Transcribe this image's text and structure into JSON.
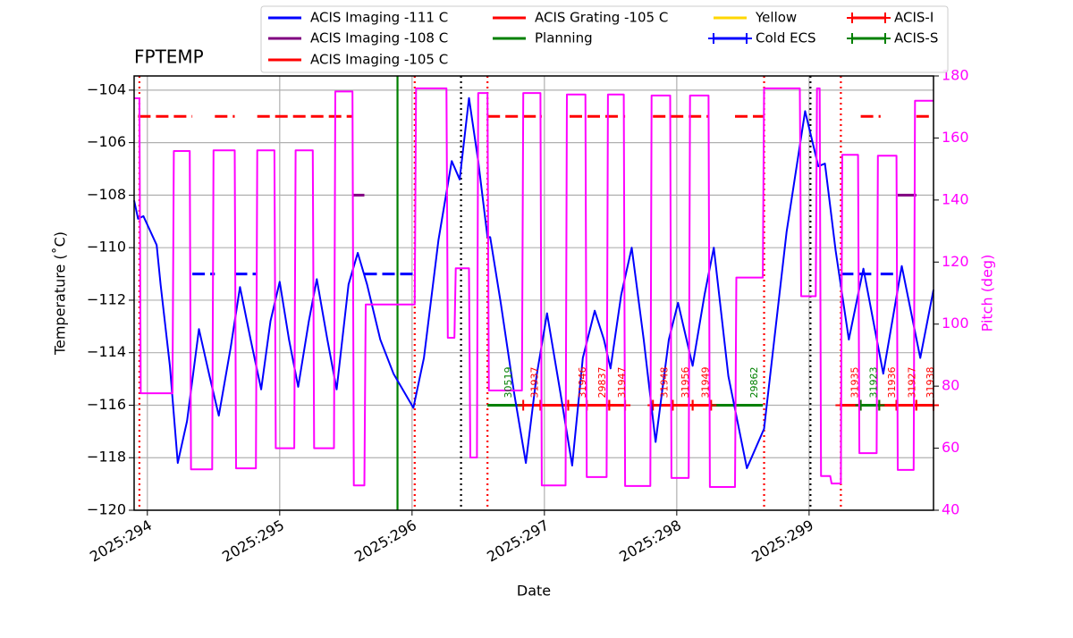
{
  "chart_data": {
    "type": "line",
    "title": "FPTEMP",
    "x_label": "Date",
    "y_label": "Temperature (˚C)",
    "y2_label": "Pitch (deg)",
    "y2_color": "#ff00ff",
    "grid": true,
    "legend": "upper center",
    "xlim": [
      293.9,
      299.94
    ],
    "xticks": [
      {
        "value": 294,
        "label": "2025:294"
      },
      {
        "value": 295,
        "label": "2025:295"
      },
      {
        "value": 296,
        "label": "2025:296"
      },
      {
        "value": 297,
        "label": "2025:297"
      },
      {
        "value": 298,
        "label": "2025:298"
      },
      {
        "value": 299,
        "label": "2025:299"
      }
    ],
    "ylim": [
      -120,
      -103.46
    ],
    "yticks": [
      {
        "value": -120,
        "label": "−120"
      },
      {
        "value": -118,
        "label": "−118"
      },
      {
        "value": -116,
        "label": "−116"
      },
      {
        "value": -114,
        "label": "−114"
      },
      {
        "value": -112,
        "label": "−112"
      },
      {
        "value": -110,
        "label": "−110"
      },
      {
        "value": -108,
        "label": "−108"
      },
      {
        "value": -106,
        "label": "−106"
      },
      {
        "value": -104,
        "label": "−104"
      }
    ],
    "y2lim": [
      40,
      180
    ],
    "y2ticks": [
      40,
      60,
      80,
      100,
      120,
      140,
      160,
      180
    ],
    "series": [
      {
        "name": "ACIS Imaging -111 C",
        "color": "#0000ff",
        "linestyle": "dashed",
        "x": [
          294.34,
          294.51,
          null,
          294.66,
          294.82,
          null,
          295.64,
          296.01,
          null,
          299.24,
          299.47,
          null,
          299.54,
          299.66
        ],
        "values": [
          -111,
          -111,
          null,
          -111,
          -111,
          null,
          -111,
          -111,
          null,
          -111,
          -111,
          null,
          -111,
          -111
        ]
      },
      {
        "name": "ACIS Imaging -108 C",
        "color": "#800080",
        "linestyle": "solid",
        "x": [
          295.55,
          295.64,
          null,
          299.67,
          299.81
        ],
        "values": [
          -108,
          -108,
          null,
          -108,
          -108
        ]
      },
      {
        "name": "ACIS Imaging -105 C",
        "color": "#ff0000",
        "linestyle": "dashed",
        "x": [
          293.93,
          294.34,
          null,
          294.51,
          294.66,
          null,
          294.83,
          295.55
        ],
        "values": [
          -105,
          -105,
          null,
          -105,
          -105,
          null,
          -105,
          -105
        ]
      },
      {
        "name": "ACIS Grating -105 C",
        "color": "#ff0000",
        "linestyle": "dashed",
        "x": [
          296.57,
          296.98,
          null,
          297.19,
          297.61,
          null,
          297.82,
          298.24,
          null,
          298.44,
          298.66,
          null,
          299.39,
          299.54,
          null,
          299.81,
          299.94
        ],
        "values": [
          -105,
          -105,
          null,
          -105,
          -105,
          null,
          -105,
          -105,
          null,
          -105,
          -105,
          null,
          -105,
          -105,
          null,
          -105,
          -105
        ]
      },
      {
        "name": "Planning",
        "color": "#008000",
        "linestyle": "solid",
        "x": [
          296.57,
          296.84,
          null,
          298.26,
          298.65
        ],
        "values": [
          -116,
          -116,
          null,
          -116,
          -116
        ]
      },
      {
        "name": "Yellow",
        "color": "#ffd700",
        "linestyle": "solid",
        "x": [],
        "values": []
      },
      {
        "name": "Cold ECS",
        "color": "#0000ff",
        "linestyle": "solid",
        "marker": "+",
        "x": [],
        "values": []
      },
      {
        "name": "ACIS-I",
        "color": "#ff0000",
        "linestyle": "solid",
        "marker": "+",
        "x": [
          296.84,
          296.97,
          null,
          296.97,
          297.18,
          null,
          297.18,
          297.32,
          null,
          297.32,
          297.49,
          null,
          297.49,
          297.61,
          null,
          297.82,
          297.97,
          null,
          297.97,
          298.12,
          null,
          298.12,
          298.26,
          null,
          299.24,
          299.39,
          null,
          299.53,
          299.66,
          null,
          299.66,
          299.81,
          null,
          299.81,
          299.94
        ],
        "values": [
          -116,
          -116,
          null,
          -116,
          -116,
          null,
          -116,
          -116,
          null,
          -116,
          -116,
          null,
          -116,
          -116,
          null,
          -116,
          -116,
          null,
          -116,
          -116,
          null,
          -116,
          -116,
          null,
          -116,
          -116,
          null,
          -116,
          -116,
          null,
          -116,
          -116,
          null,
          -116,
          -116
        ]
      },
      {
        "name": "ACIS-S",
        "color": "#008000",
        "linestyle": "solid",
        "marker": "+",
        "x": [
          299.39,
          299.53
        ],
        "values": [
          -116,
          -116
        ]
      },
      {
        "color": "#0000ff",
        "linestyle": "solid",
        "x": [
          293.9,
          293.93,
          293.97,
          294.07,
          294.1,
          294.17,
          294.23,
          294.3,
          294.39,
          294.47,
          294.54,
          294.63,
          294.7,
          294.78,
          294.86,
          294.93,
          295.0,
          295.07,
          295.14,
          295.22,
          295.28,
          295.36,
          295.43,
          295.52,
          295.59,
          295.66,
          295.76,
          295.86,
          296.01,
          296.09,
          296.2,
          296.3,
          296.36,
          296.43,
          296.5,
          296.57,
          296.59,
          296.67,
          296.77,
          296.86,
          296.94,
          297.02,
          297.12,
          297.21,
          297.29,
          297.38,
          297.45,
          297.5,
          297.58,
          297.66,
          297.75,
          297.84,
          297.94,
          298.01,
          298.12,
          298.21,
          298.28,
          298.39,
          298.53,
          298.66,
          298.83,
          298.97,
          299.07,
          299.12,
          299.2,
          299.3,
          299.41,
          299.56,
          299.7,
          299.84,
          299.94
        ],
        "values": [
          -108.2,
          -108.9,
          -108.8,
          -109.9,
          -111.4,
          -114.5,
          -118.2,
          -116.6,
          -113.1,
          -114.9,
          -116.4,
          -113.8,
          -111.5,
          -113.5,
          -115.4,
          -112.8,
          -111.3,
          -113.5,
          -115.3,
          -112.8,
          -111.2,
          -113.5,
          -115.4,
          -111.4,
          -110.2,
          -111.4,
          -113.5,
          -114.8,
          -116.1,
          -114.2,
          -109.7,
          -106.7,
          -107.4,
          -104.3,
          -106.7,
          -109.6,
          -109.6,
          -112.1,
          -115.5,
          -118.2,
          -114.9,
          -112.5,
          -115.5,
          -118.3,
          -114.2,
          -112.4,
          -113.5,
          -114.6,
          -111.8,
          -110.0,
          -113.5,
          -117.4,
          -113.5,
          -112.1,
          -114.5,
          -111.8,
          -110.0,
          -114.9,
          -118.4,
          -116.9,
          -109.4,
          -104.8,
          -106.9,
          -106.8,
          -110.1,
          -113.5,
          -110.8,
          -114.8,
          -110.7,
          -114.2,
          -111.6
        ]
      },
      {
        "color": "#ff00ff",
        "linestyle": "solid",
        "axis": "y2",
        "x": [
          293.9,
          293.94,
          293.95,
          294.19,
          294.2,
          294.32,
          294.33,
          294.49,
          294.5,
          294.66,
          294.67,
          294.82,
          294.83,
          294.96,
          294.97,
          295.11,
          295.12,
          295.25,
          295.26,
          295.41,
          295.42,
          295.55,
          295.56,
          295.64,
          295.65,
          296.02,
          296.03,
          296.26,
          296.27,
          296.32,
          296.33,
          296.43,
          296.44,
          296.49,
          296.5,
          296.57,
          296.58,
          296.83,
          296.84,
          296.97,
          296.98,
          297.16,
          297.17,
          297.31,
          297.32,
          297.47,
          297.48,
          297.6,
          297.61,
          297.8,
          297.81,
          297.95,
          297.96,
          298.09,
          298.1,
          298.24,
          298.25,
          298.44,
          298.45,
          298.65,
          298.66,
          298.93,
          298.94,
          299.05,
          299.06,
          299.08,
          299.09,
          299.16,
          299.17,
          299.24,
          299.25,
          299.37,
          299.38,
          299.51,
          299.52,
          299.66,
          299.67,
          299.79,
          299.8,
          299.94
        ],
        "values": [
          172.8,
          172.8,
          77.7,
          77.7,
          155.8,
          155.8,
          53.2,
          53.2,
          156,
          156,
          53.5,
          53.5,
          156,
          156,
          60,
          60,
          156,
          156,
          60,
          60,
          175,
          175,
          48,
          48,
          106.3,
          106.3,
          176,
          176,
          95.6,
          95.6,
          118,
          118,
          57,
          57,
          174.5,
          174.5,
          78.6,
          78.6,
          174.5,
          174.5,
          48,
          48,
          174,
          174,
          50.7,
          50.7,
          174,
          174,
          47.8,
          47.8,
          173.7,
          173.7,
          50.4,
          50.4,
          173.7,
          173.7,
          47.5,
          47.5,
          115,
          115,
          176,
          176,
          109,
          109,
          176,
          176,
          51,
          51,
          48.6,
          48.6,
          154.6,
          154.6,
          58.4,
          58.4,
          154.3,
          154.3,
          53,
          53,
          172,
          172
        ]
      }
    ],
    "vlines": [
      {
        "x": 293.94,
        "color": "#ff0000",
        "linestyle": "dotted"
      },
      {
        "x": 295.89,
        "color": "#008000",
        "linestyle": "solid"
      },
      {
        "x": 296.02,
        "color": "#ff0000",
        "linestyle": "dotted"
      },
      {
        "x": 296.37,
        "color": "#000000",
        "linestyle": "dotted"
      },
      {
        "x": 296.57,
        "color": "#ff0000",
        "linestyle": "dotted"
      },
      {
        "x": 298.66,
        "color": "#ff0000",
        "linestyle": "dotted"
      },
      {
        "x": 299.01,
        "color": "#000000",
        "linestyle": "dotted"
      },
      {
        "x": 299.24,
        "color": "#ff0000",
        "linestyle": "dotted"
      }
    ],
    "annotations": [
      {
        "text": "30519",
        "x": 296.73,
        "color": "#008000"
      },
      {
        "text": "31937",
        "x": 296.93,
        "color": "#ff0000"
      },
      {
        "text": "31946",
        "x": 297.29,
        "color": "#ff0000"
      },
      {
        "text": "29837",
        "x": 297.44,
        "color": "#ff0000"
      },
      {
        "text": "31947",
        "x": 297.59,
        "color": "#ff0000"
      },
      {
        "text": "31948",
        "x": 297.91,
        "color": "#ff0000"
      },
      {
        "text": "31956",
        "x": 298.07,
        "color": "#ff0000"
      },
      {
        "text": "31949",
        "x": 298.22,
        "color": "#ff0000"
      },
      {
        "text": "29862",
        "x": 298.59,
        "color": "#008000"
      },
      {
        "text": "31935",
        "x": 299.35,
        "color": "#ff0000"
      },
      {
        "text": "31923",
        "x": 299.49,
        "color": "#008000"
      },
      {
        "text": "31936",
        "x": 299.63,
        "color": "#ff0000"
      },
      {
        "text": "31927",
        "x": 299.78,
        "color": "#ff0000"
      },
      {
        "text": "31938",
        "x": 299.92,
        "color": "#ff0000"
      }
    ]
  }
}
